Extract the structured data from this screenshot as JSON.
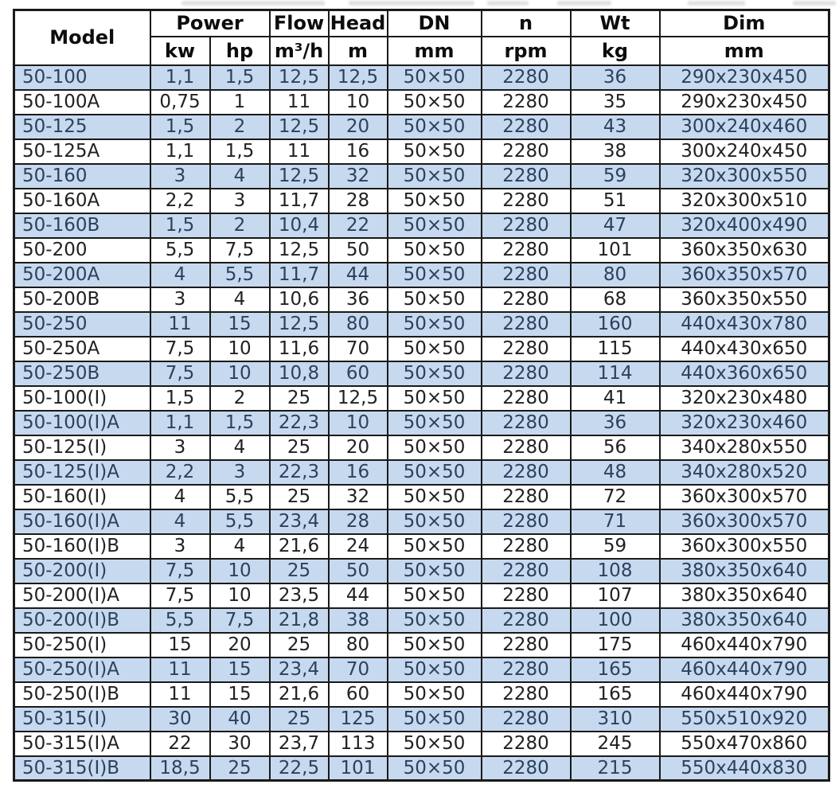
{
  "colors": {
    "row_shaded": "#c6d9ee",
    "row_plain": "#ffffff",
    "text_plain": "#212121",
    "text_shaded": "#2b415e",
    "border": "#1a1a1a",
    "header_text": "#0d0d0d"
  },
  "table": {
    "header": {
      "model": "Model",
      "power": "Power",
      "flow": "Flow",
      "head": "Head",
      "dn": "DN",
      "n": "n",
      "wt": "Wt",
      "dim": "Dim"
    },
    "units": {
      "kw": "kw",
      "hp": "hp",
      "flow": "m³/h",
      "head": "m",
      "dn": "mm",
      "n": "rpm",
      "wt": "kg",
      "dim": "mm"
    },
    "column_keys": [
      "model",
      "power-kw",
      "power-hp",
      "flow-m3h",
      "head-m",
      "dn-mm",
      "n-rpm",
      "wt-kg",
      "dim-mm"
    ],
    "rows": [
      [
        "50-100",
        "1,1",
        "1,5",
        "12,5",
        "12,5",
        "50×50",
        "2280",
        "36",
        "290x230x450"
      ],
      [
        "50-100A",
        "0,75",
        "1",
        "11",
        "10",
        "50×50",
        "2280",
        "35",
        "290x230x450"
      ],
      [
        "50-125",
        "1,5",
        "2",
        "12,5",
        "20",
        "50×50",
        "2280",
        "43",
        "300x240x460"
      ],
      [
        "50-125A",
        "1,1",
        "1,5",
        "11",
        "16",
        "50×50",
        "2280",
        "38",
        "300x240x450"
      ],
      [
        "50-160",
        "3",
        "4",
        "12,5",
        "32",
        "50×50",
        "2280",
        "59",
        "320x300x550"
      ],
      [
        "50-160A",
        "2,2",
        "3",
        "11,7",
        "28",
        "50×50",
        "2280",
        "51",
        "320x300x510"
      ],
      [
        "50-160B",
        "1,5",
        "2",
        "10,4",
        "22",
        "50×50",
        "2280",
        "47",
        "320x400x490"
      ],
      [
        "50-200",
        "5,5",
        "7,5",
        "12,5",
        "50",
        "50×50",
        "2280",
        "101",
        "360x350x630"
      ],
      [
        "50-200A",
        "4",
        "5,5",
        "11,7",
        "44",
        "50×50",
        "2280",
        "80",
        "360x350x570"
      ],
      [
        "50-200B",
        "3",
        "4",
        "10,6",
        "36",
        "50×50",
        "2280",
        "68",
        "360x350x550"
      ],
      [
        "50-250",
        "11",
        "15",
        "12,5",
        "80",
        "50×50",
        "2280",
        "160",
        "440x430x780"
      ],
      [
        "50-250A",
        "7,5",
        "10",
        "11,6",
        "70",
        "50×50",
        "2280",
        "115",
        "440x430x650"
      ],
      [
        "50-250B",
        "7,5",
        "10",
        "10,8",
        "60",
        "50×50",
        "2280",
        "114",
        "440x360x650"
      ],
      [
        "50-100(I)",
        "1,5",
        "2",
        "25",
        "12,5",
        "50×50",
        "2280",
        "41",
        "320x230x480"
      ],
      [
        "50-100(I)A",
        "1,1",
        "1,5",
        "22,3",
        "10",
        "50×50",
        "2280",
        "36",
        "320x230x460"
      ],
      [
        "50-125(I)",
        "3",
        "4",
        "25",
        "20",
        "50×50",
        "2280",
        "56",
        "340x280x550"
      ],
      [
        "50-125(I)A",
        "2,2",
        "3",
        "22,3",
        "16",
        "50×50",
        "2280",
        "48",
        "340x280x520"
      ],
      [
        "50-160(I)",
        "4",
        "5,5",
        "25",
        "32",
        "50×50",
        "2280",
        "72",
        "360x300x570"
      ],
      [
        "50-160(I)A",
        "4",
        "5,5",
        "23,4",
        "28",
        "50×50",
        "2280",
        "71",
        "360x300x570"
      ],
      [
        "50-160(I)B",
        "3",
        "4",
        "21,6",
        "24",
        "50×50",
        "2280",
        "59",
        "360x300x550"
      ],
      [
        "50-200(I)",
        "7,5",
        "10",
        "25",
        "50",
        "50×50",
        "2280",
        "108",
        "380x350x640"
      ],
      [
        "50-200(I)A",
        "7,5",
        "10",
        "23,5",
        "44",
        "50×50",
        "2280",
        "107",
        "380x350x640"
      ],
      [
        "50-200(I)B",
        "5,5",
        "7,5",
        "21,8",
        "38",
        "50×50",
        "2280",
        "100",
        "380x350x640"
      ],
      [
        "50-250(I)",
        "15",
        "20",
        "25",
        "80",
        "50×50",
        "2280",
        "175",
        "460x440x790"
      ],
      [
        "50-250(I)A",
        "11",
        "15",
        "23,4",
        "70",
        "50×50",
        "2280",
        "165",
        "460x440x790"
      ],
      [
        "50-250(I)B",
        "11",
        "15",
        "21,6",
        "60",
        "50×50",
        "2280",
        "165",
        "460x440x790"
      ],
      [
        "50-315(I)",
        "30",
        "40",
        "25",
        "125",
        "50×50",
        "2280",
        "310",
        "550x510x920"
      ],
      [
        "50-315(I)A",
        "22",
        "30",
        "23,7",
        "113",
        "50×50",
        "2280",
        "245",
        "550x470x860"
      ],
      [
        "50-315(I)B",
        "18,5",
        "25",
        "22,5",
        "101",
        "50×50",
        "2280",
        "215",
        "550x440x830"
      ]
    ]
  }
}
